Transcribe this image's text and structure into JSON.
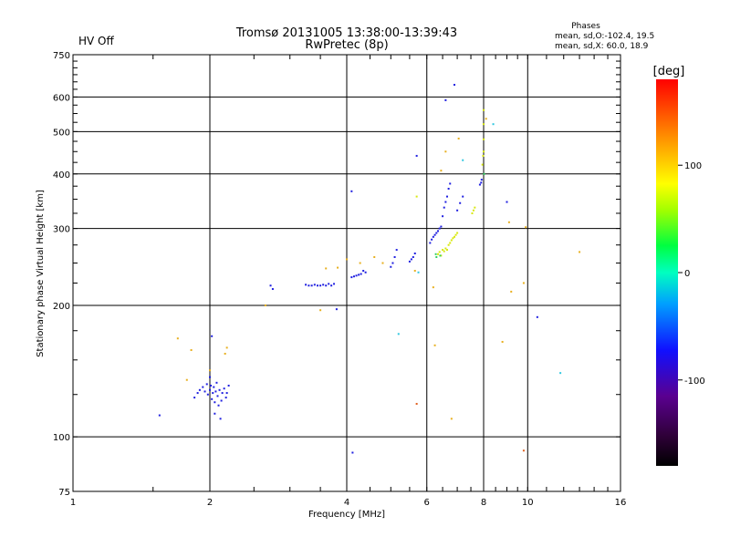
{
  "header": {
    "status": "HV Off",
    "status_color": "#cc0000",
    "title_line1": "Tromsø 20131005 13:38:00-13:39:43",
    "title_line2": "RwPretec (8p)",
    "phases_title": "Phases",
    "phases_o": "mean, sd,O:-102.4, 19.5",
    "phases_x": "mean, sd,X:  60.0, 18.9"
  },
  "chart_data": {
    "type": "scatter",
    "xlabel": "Frequency [MHz]",
    "ylabel": "Stationary phase Virtual Height [km]",
    "x_scale": "log",
    "y_scale": "log",
    "xlim": [
      1,
      16
    ],
    "ylim": [
      75,
      750
    ],
    "x_ticks": [
      1,
      2,
      4,
      6,
      8,
      10,
      16
    ],
    "x_tick_labels": [
      "1",
      "2",
      "4",
      "6",
      "8",
      "10",
      "16"
    ],
    "x_gridlines": [
      2,
      4,
      6,
      8,
      10
    ],
    "y_ticks": [
      75,
      100,
      200,
      300,
      400,
      500,
      600,
      750
    ],
    "y_tick_labels": [
      "75",
      "100",
      "200",
      "300",
      "400",
      "500",
      "600",
      "750"
    ],
    "y_gridlines": [
      100,
      200,
      300,
      400,
      500,
      600
    ],
    "grid": true,
    "colorbar": {
      "label": "[deg]",
      "range": [
        -180,
        180
      ],
      "ticks": [
        100,
        0,
        -100
      ],
      "tick_labels": [
        "100",
        "0",
        "-100"
      ],
      "colormap": "rainbow (black-purple-blue-cyan-green-yellow-orange-red)"
    },
    "series": [
      {
        "color": "#2020e0",
        "points": [
          [
            1.55,
            112
          ],
          [
            1.85,
            123
          ],
          [
            1.88,
            126
          ],
          [
            1.9,
            128
          ],
          [
            1.93,
            130
          ],
          [
            1.95,
            127
          ],
          [
            1.97,
            132
          ],
          [
            1.98,
            125
          ],
          [
            2.0,
            128
          ],
          [
            2.01,
            131
          ],
          [
            2.02,
            122
          ],
          [
            2.03,
            126
          ],
          [
            2.04,
            130
          ],
          [
            2.05,
            120
          ],
          [
            2.06,
            127
          ],
          [
            2.07,
            133
          ],
          [
            2.08,
            124
          ],
          [
            2.09,
            118
          ],
          [
            2.1,
            128
          ],
          [
            2.12,
            121
          ],
          [
            2.13,
            126
          ],
          [
            2.15,
            129
          ],
          [
            2.17,
            123
          ],
          [
            2.18,
            126
          ],
          [
            2.2,
            131
          ],
          [
            2.0,
            137
          ],
          [
            2.05,
            113
          ],
          [
            2.11,
            110
          ],
          [
            2.02,
            170
          ],
          [
            2.72,
            222
          ],
          [
            2.75,
            218
          ],
          [
            3.25,
            223
          ],
          [
            3.3,
            222
          ],
          [
            3.35,
            222
          ],
          [
            3.4,
            223
          ],
          [
            3.45,
            222
          ],
          [
            3.5,
            222
          ],
          [
            3.55,
            223
          ],
          [
            3.6,
            222
          ],
          [
            3.65,
            224
          ],
          [
            3.7,
            222
          ],
          [
            3.75,
            224
          ],
          [
            3.8,
            196
          ],
          [
            4.1,
            232
          ],
          [
            4.15,
            233
          ],
          [
            4.2,
            234
          ],
          [
            4.25,
            235
          ],
          [
            4.3,
            236
          ],
          [
            4.35,
            240
          ],
          [
            4.4,
            238
          ],
          [
            4.1,
            365
          ],
          [
            4.12,
            92
          ],
          [
            5.0,
            245
          ],
          [
            5.05,
            250
          ],
          [
            5.1,
            258
          ],
          [
            5.15,
            268
          ],
          [
            5.5,
            252
          ],
          [
            5.55,
            255
          ],
          [
            5.6,
            258
          ],
          [
            5.65,
            263
          ],
          [
            5.7,
            440
          ],
          [
            6.1,
            278
          ],
          [
            6.15,
            283
          ],
          [
            6.2,
            287
          ],
          [
            6.25,
            290
          ],
          [
            6.3,
            293
          ],
          [
            6.35,
            296
          ],
          [
            6.4,
            300
          ],
          [
            6.45,
            303
          ],
          [
            6.5,
            320
          ],
          [
            6.55,
            335
          ],
          [
            6.6,
            345
          ],
          [
            6.65,
            355
          ],
          [
            6.7,
            370
          ],
          [
            6.75,
            380
          ],
          [
            6.6,
            590
          ],
          [
            6.9,
            640
          ],
          [
            7.0,
            330
          ],
          [
            7.1,
            343
          ],
          [
            7.2,
            355
          ],
          [
            7.85,
            378
          ],
          [
            7.9,
            382
          ],
          [
            7.92,
            388
          ],
          [
            9.0,
            345
          ],
          [
            10.5,
            188
          ]
        ]
      },
      {
        "color": "#d8e810",
        "points": [
          [
            6.35,
            262
          ],
          [
            6.4,
            265
          ],
          [
            6.45,
            260
          ],
          [
            6.5,
            268
          ],
          [
            6.55,
            266
          ],
          [
            6.6,
            270
          ],
          [
            6.65,
            268
          ],
          [
            6.7,
            275
          ],
          [
            6.75,
            278
          ],
          [
            6.8,
            282
          ],
          [
            6.85,
            285
          ],
          [
            6.9,
            287
          ],
          [
            6.95,
            290
          ],
          [
            7.0,
            293
          ],
          [
            7.55,
            325
          ],
          [
            7.6,
            330
          ],
          [
            7.65,
            335
          ],
          [
            7.95,
            420
          ],
          [
            8.0,
            450
          ],
          [
            8.0,
            480
          ],
          [
            8.0,
            520
          ],
          [
            8.0,
            560
          ],
          [
            7.98,
            440
          ],
          [
            5.7,
            355
          ]
        ]
      },
      {
        "color": "#e8b020",
        "points": [
          [
            1.7,
            168
          ],
          [
            1.78,
            135
          ],
          [
            1.82,
            158
          ],
          [
            2.18,
            160
          ],
          [
            2.16,
            155
          ],
          [
            2.0,
            142
          ],
          [
            2.65,
            200
          ],
          [
            3.5,
            195
          ],
          [
            3.6,
            243
          ],
          [
            3.82,
            244
          ],
          [
            4.0,
            255
          ],
          [
            4.28,
            250
          ],
          [
            4.6,
            258
          ],
          [
            4.8,
            250
          ],
          [
            5.65,
            240
          ],
          [
            6.2,
            220
          ],
          [
            6.6,
            450
          ],
          [
            6.45,
            407
          ],
          [
            6.25,
            162
          ],
          [
            6.8,
            110
          ],
          [
            7.05,
            482
          ],
          [
            8.1,
            535
          ],
          [
            8.8,
            165
          ],
          [
            9.2,
            215
          ],
          [
            9.8,
            225
          ],
          [
            9.9,
            302
          ],
          [
            9.1,
            310
          ],
          [
            13.0,
            265
          ]
        ]
      },
      {
        "color": "#30d060",
        "points": [
          [
            6.28,
            262
          ],
          [
            6.3,
            258
          ],
          [
            6.42,
            260
          ],
          [
            8.02,
            400
          ]
        ]
      },
      {
        "color": "#30c8e0",
        "points": [
          [
            5.75,
            238
          ],
          [
            5.2,
            172
          ],
          [
            8.4,
            520
          ],
          [
            11.8,
            140
          ],
          [
            7.2,
            430
          ]
        ]
      },
      {
        "color": "#e06020",
        "points": [
          [
            5.7,
            119
          ],
          [
            9.8,
            93
          ]
        ]
      }
    ]
  }
}
